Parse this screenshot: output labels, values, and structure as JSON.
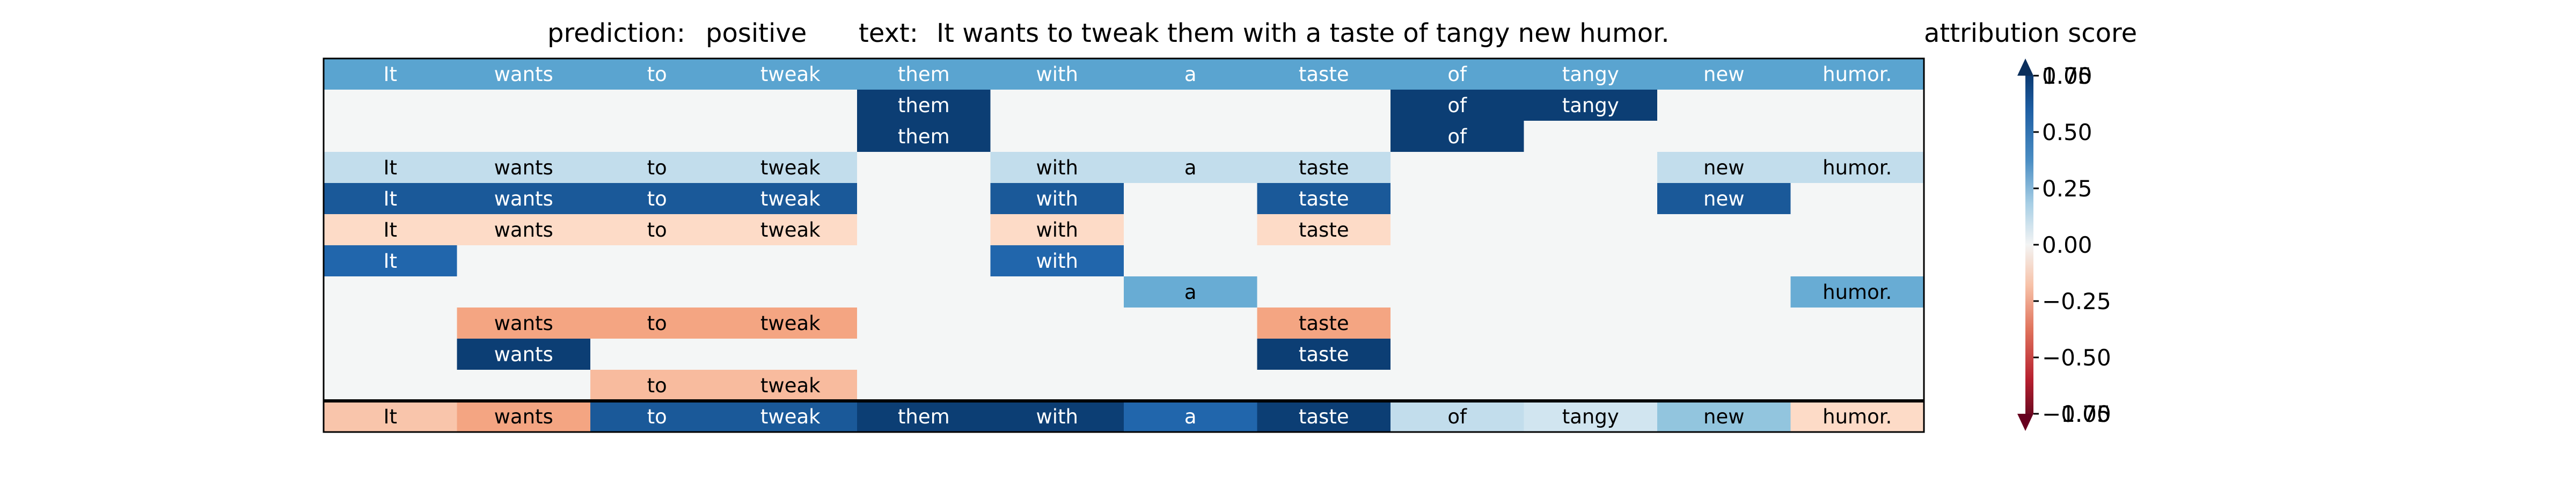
{
  "header": {
    "prediction_label": "prediction:",
    "prediction_value": "positive",
    "text_label": "text:",
    "text_value": "It wants to tweak them with a taste of tangy new humor."
  },
  "colorbar": {
    "title": "attribution score",
    "ticks": [
      "0.75",
      "0.50",
      "0.25",
      "0.00",
      "−0.25",
      "−0.50",
      "−0.75"
    ],
    "tick_values": [
      0.75,
      0.5,
      0.25,
      0.0,
      -0.25,
      -0.5,
      -0.75
    ],
    "overlapping_top_label": "1.00",
    "overlapping_bottom_label": "−1.00",
    "range": [
      -0.75,
      0.75
    ],
    "extend": "both",
    "colormap": "RdBu"
  },
  "chart_data": {
    "type": "heatmap",
    "title": "",
    "xlabel": "",
    "ylabel": "",
    "x": [
      "It",
      "wants",
      "to",
      "tweak",
      "them",
      "with",
      "a",
      "taste",
      "of",
      "tangy",
      "new",
      "humor."
    ],
    "row_count": 12,
    "rows": [
      [
        0.45,
        0.45,
        0.45,
        0.45,
        0.45,
        0.45,
        0.45,
        0.45,
        0.45,
        0.45,
        0.45,
        0.45
      ],
      [
        null,
        null,
        null,
        null,
        0.95,
        null,
        null,
        null,
        0.95,
        0.95,
        null,
        null
      ],
      [
        null,
        null,
        null,
        null,
        0.95,
        null,
        null,
        null,
        0.95,
        null,
        null,
        null
      ],
      [
        0.12,
        0.12,
        0.12,
        0.12,
        null,
        0.12,
        0.12,
        0.12,
        null,
        null,
        0.12,
        0.12
      ],
      [
        0.85,
        0.85,
        0.85,
        0.85,
        null,
        0.85,
        null,
        0.85,
        null,
        null,
        0.85,
        null
      ],
      [
        -0.08,
        -0.08,
        -0.08,
        -0.08,
        null,
        -0.08,
        null,
        -0.08,
        null,
        null,
        null,
        null
      ],
      [
        0.8,
        null,
        null,
        null,
        null,
        0.8,
        null,
        null,
        null,
        null,
        null,
        null
      ],
      [
        null,
        null,
        null,
        null,
        null,
        null,
        0.4,
        null,
        null,
        null,
        null,
        0.4
      ],
      [
        null,
        -0.25,
        -0.25,
        -0.25,
        null,
        null,
        null,
        -0.25,
        null,
        null,
        null,
        null
      ],
      [
        null,
        0.95,
        null,
        null,
        null,
        null,
        null,
        0.95,
        null,
        null,
        null,
        null
      ],
      [
        null,
        null,
        -0.18,
        -0.18,
        null,
        null,
        null,
        null,
        null,
        null,
        null,
        null
      ],
      [
        -0.15,
        -0.25,
        0.85,
        0.85,
        0.95,
        0.95,
        0.8,
        0.95,
        0.12,
        0.08,
        0.25,
        -0.08
      ]
    ],
    "empty_cell_color": "#f4f6f6",
    "legend": "none",
    "grid": false
  }
}
